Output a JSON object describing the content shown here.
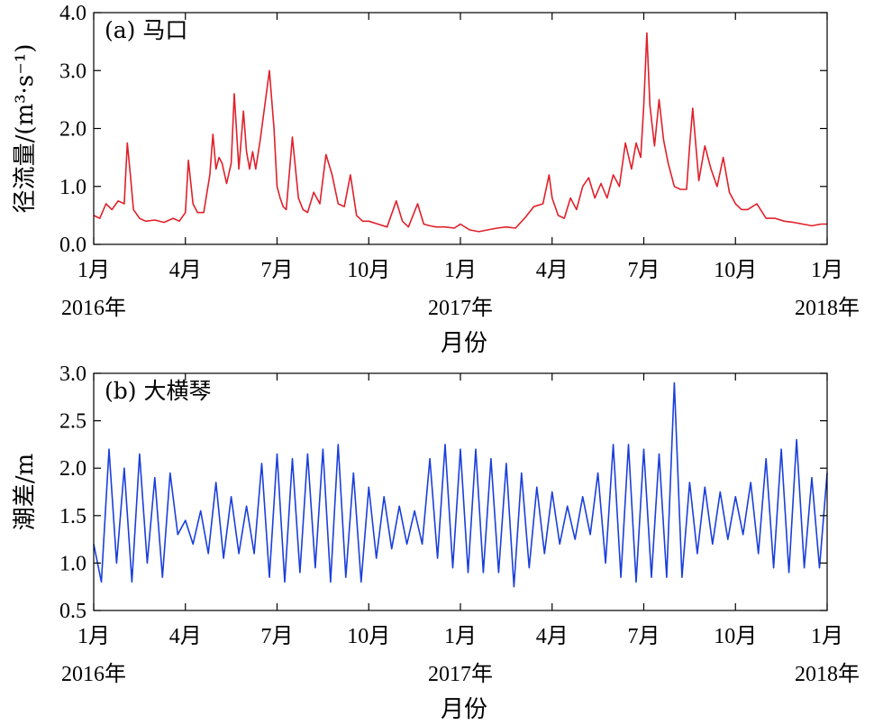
{
  "chart_data": [
    {
      "type": "line",
      "panel_label": "(a) 马口",
      "ylabel": "径流量/(m³·s⁻¹)",
      "xlabel": "月份",
      "ylim": [
        0,
        4.0
      ],
      "yticks": [
        "0.0",
        "1.0",
        "2.0",
        "3.0",
        "4.0"
      ],
      "x_range_months": [
        0,
        24
      ],
      "xticks": [
        {
          "month": 0,
          "label": "1月",
          "year": "2016年"
        },
        {
          "month": 3,
          "label": "4月"
        },
        {
          "month": 6,
          "label": "7月"
        },
        {
          "month": 9,
          "label": "10月"
        },
        {
          "month": 12,
          "label": "1月",
          "year": "2017年"
        },
        {
          "month": 15,
          "label": "4月"
        },
        {
          "month": 18,
          "label": "7月"
        },
        {
          "month": 21,
          "label": "10月"
        },
        {
          "month": 24,
          "label": "1月",
          "year": "2018年"
        }
      ],
      "series": [
        {
          "color": "#e0202a",
          "x": [
            0,
            0.2,
            0.4,
            0.6,
            0.8,
            1.0,
            1.1,
            1.2,
            1.3,
            1.5,
            1.7,
            2.0,
            2.3,
            2.6,
            2.8,
            3.0,
            3.1,
            3.25,
            3.4,
            3.6,
            3.8,
            3.9,
            4.0,
            4.1,
            4.2,
            4.35,
            4.5,
            4.6,
            4.75,
            4.9,
            5.0,
            5.1,
            5.2,
            5.3,
            5.45,
            5.6,
            5.75,
            5.9,
            6.0,
            6.1,
            6.2,
            6.3,
            6.5,
            6.7,
            6.85,
            7.0,
            7.2,
            7.4,
            7.6,
            7.8,
            8.0,
            8.2,
            8.4,
            8.6,
            8.8,
            9.0,
            9.3,
            9.6,
            9.9,
            10.1,
            10.3,
            10.6,
            10.8,
            11.0,
            11.2,
            11.5,
            11.8,
            12.0,
            12.3,
            12.6,
            12.9,
            13.2,
            13.5,
            13.8,
            14.1,
            14.4,
            14.7,
            14.9,
            15.0,
            15.2,
            15.4,
            15.6,
            15.8,
            16.0,
            16.2,
            16.4,
            16.6,
            16.8,
            17.0,
            17.2,
            17.4,
            17.6,
            17.75,
            17.9,
            18.0,
            18.1,
            18.2,
            18.35,
            18.5,
            18.65,
            18.8,
            19.0,
            19.2,
            19.4,
            19.5,
            19.6,
            19.8,
            20.0,
            20.2,
            20.4,
            20.6,
            20.8,
            21.0,
            21.2,
            21.4,
            21.7,
            22.0,
            22.3,
            22.6,
            22.9,
            23.2,
            23.5,
            23.8,
            24.0
          ],
          "y": [
            0.5,
            0.45,
            0.7,
            0.6,
            0.75,
            0.7,
            1.75,
            1.2,
            0.6,
            0.45,
            0.4,
            0.42,
            0.38,
            0.45,
            0.4,
            0.55,
            1.45,
            0.7,
            0.55,
            0.55,
            1.2,
            1.9,
            1.3,
            1.5,
            1.4,
            1.05,
            1.4,
            2.6,
            1.3,
            2.3,
            1.6,
            1.3,
            1.6,
            1.3,
            1.8,
            2.4,
            3.0,
            2.0,
            1.0,
            0.8,
            0.65,
            0.6,
            1.85,
            0.8,
            0.6,
            0.55,
            0.9,
            0.7,
            1.55,
            1.2,
            0.7,
            0.65,
            1.2,
            0.5,
            0.4,
            0.4,
            0.35,
            0.3,
            0.75,
            0.4,
            0.3,
            0.7,
            0.35,
            0.32,
            0.3,
            0.3,
            0.28,
            0.35,
            0.25,
            0.22,
            0.25,
            0.28,
            0.3,
            0.28,
            0.45,
            0.65,
            0.7,
            1.2,
            0.8,
            0.5,
            0.45,
            0.8,
            0.6,
            1.0,
            1.15,
            0.8,
            1.05,
            0.8,
            1.2,
            1.0,
            1.75,
            1.3,
            1.75,
            1.5,
            2.4,
            3.65,
            2.4,
            1.7,
            2.5,
            1.8,
            1.4,
            1.0,
            0.95,
            0.95,
            1.7,
            2.35,
            1.1,
            1.7,
            1.3,
            1.0,
            1.5,
            0.9,
            0.7,
            0.6,
            0.6,
            0.7,
            0.45,
            0.45,
            0.4,
            0.38,
            0.35,
            0.32,
            0.35,
            0.35
          ]
        }
      ]
    },
    {
      "type": "line",
      "panel_label": "(b) 大横琴",
      "ylabel": "潮差/m",
      "xlabel": "月份",
      "ylim": [
        0.5,
        3.0
      ],
      "yticks": [
        "0.5",
        "1.0",
        "1.5",
        "2.0",
        "2.5",
        "3.0"
      ],
      "x_range_months": [
        0,
        24
      ],
      "xticks": [
        {
          "month": 0,
          "label": "1月",
          "year": "2016年"
        },
        {
          "month": 3,
          "label": "4月"
        },
        {
          "month": 6,
          "label": "7月"
        },
        {
          "month": 9,
          "label": "10月"
        },
        {
          "month": 12,
          "label": "1月",
          "year": "2017年"
        },
        {
          "month": 15,
          "label": "4月"
        },
        {
          "month": 18,
          "label": "7月"
        },
        {
          "month": 21,
          "label": "10月"
        },
        {
          "month": 24,
          "label": "1月",
          "year": "2018年"
        }
      ],
      "series": [
        {
          "color": "#1a3fdc",
          "x": [
            0.0,
            0.25,
            0.5,
            0.75,
            1.0,
            1.25,
            1.5,
            1.75,
            2.0,
            2.25,
            2.5,
            2.75,
            3.0,
            3.25,
            3.5,
            3.75,
            4.0,
            4.25,
            4.5,
            4.75,
            5.0,
            5.25,
            5.5,
            5.75,
            6.0,
            6.25,
            6.5,
            6.75,
            7.0,
            7.25,
            7.5,
            7.75,
            8.0,
            8.25,
            8.5,
            8.75,
            9.0,
            9.25,
            9.5,
            9.75,
            10.0,
            10.25,
            10.5,
            10.75,
            11.0,
            11.25,
            11.5,
            11.75,
            12.0,
            12.25,
            12.5,
            12.75,
            13.0,
            13.25,
            13.5,
            13.75,
            14.0,
            14.25,
            14.5,
            14.75,
            15.0,
            15.25,
            15.5,
            15.75,
            16.0,
            16.25,
            16.5,
            16.75,
            17.0,
            17.25,
            17.5,
            17.75,
            18.0,
            18.25,
            18.5,
            18.75,
            19.0,
            19.25,
            19.5,
            19.75,
            20.0,
            20.25,
            20.5,
            20.75,
            21.0,
            21.25,
            21.5,
            21.75,
            22.0,
            22.25,
            22.5,
            22.75,
            23.0,
            23.25,
            23.5,
            23.75,
            24.0
          ],
          "y": [
            1.2,
            0.8,
            2.2,
            1.0,
            2.0,
            0.8,
            2.15,
            1.0,
            1.9,
            0.85,
            1.95,
            1.3,
            1.45,
            1.2,
            1.55,
            1.1,
            1.85,
            1.05,
            1.7,
            1.1,
            1.6,
            1.1,
            2.05,
            0.85,
            2.15,
            0.8,
            2.1,
            0.9,
            2.15,
            0.95,
            2.2,
            0.8,
            2.25,
            0.85,
            1.95,
            0.8,
            1.8,
            1.05,
            1.7,
            1.15,
            1.6,
            1.2,
            1.55,
            1.2,
            2.1,
            1.05,
            2.25,
            0.95,
            2.2,
            0.9,
            2.2,
            0.9,
            2.1,
            0.9,
            2.05,
            0.75,
            1.95,
            0.95,
            1.8,
            1.1,
            1.75,
            1.2,
            1.6,
            1.25,
            1.7,
            1.3,
            1.95,
            1.0,
            2.25,
            0.85,
            2.25,
            0.8,
            2.2,
            0.85,
            2.15,
            0.85,
            2.9,
            0.85,
            1.85,
            1.1,
            1.8,
            1.2,
            1.75,
            1.25,
            1.7,
            1.3,
            1.85,
            1.1,
            2.1,
            0.95,
            2.2,
            0.9,
            2.3,
            0.95,
            1.9,
            0.95,
            1.95
          ]
        }
      ]
    }
  ]
}
